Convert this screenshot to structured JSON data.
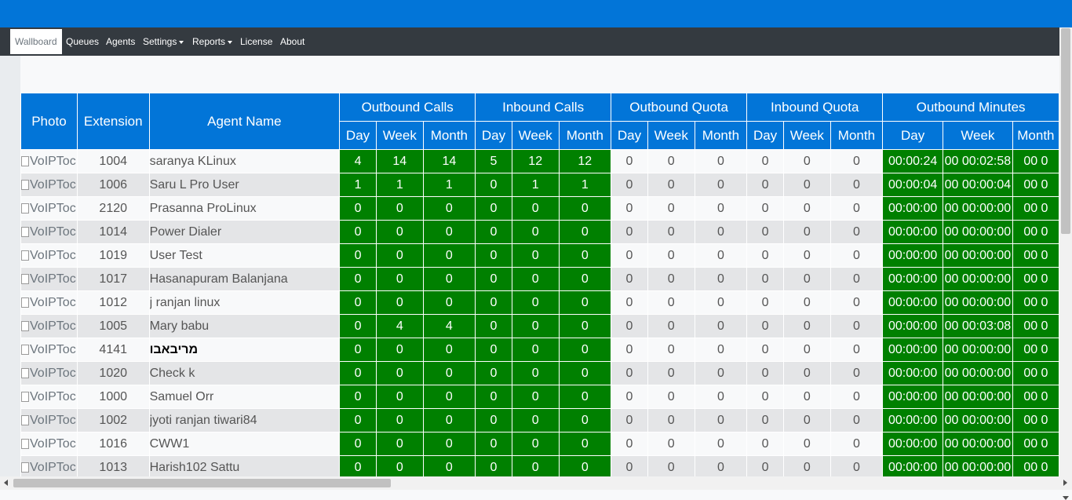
{
  "nav": {
    "items": [
      {
        "label": "Wallboard",
        "active": true,
        "dropdown": false
      },
      {
        "label": "Queues",
        "active": false,
        "dropdown": false
      },
      {
        "label": "Agents",
        "active": false,
        "dropdown": false
      },
      {
        "label": "Settings",
        "active": false,
        "dropdown": true
      },
      {
        "label": "Reports",
        "active": false,
        "dropdown": true
      },
      {
        "label": "License",
        "active": false,
        "dropdown": false
      },
      {
        "label": "About",
        "active": false,
        "dropdown": false
      }
    ]
  },
  "table": {
    "headers": {
      "photo": "Photo",
      "extension": "Extension",
      "agent_name": "Agent Name",
      "groups": [
        "Outbound Calls",
        "Inbound Calls",
        "Outbound Quota",
        "Inbound Quota",
        "Outbound Minutes"
      ],
      "sub": [
        "Day",
        "Week",
        "Month",
        "Day",
        "Week",
        "Month",
        "Day",
        "Week",
        "Month",
        "Day",
        "Week",
        "Month",
        "Day",
        "Week",
        "Month"
      ]
    },
    "photo_alt": "VoIPToc",
    "rows": [
      {
        "ext": "1004",
        "name": "saranya KLinux",
        "vals": [
          "4",
          "14",
          "14",
          "5",
          "12",
          "12",
          "0",
          "0",
          "0",
          "0",
          "0",
          "0",
          "00:00:24",
          "00 00:02:58",
          "00 0"
        ]
      },
      {
        "ext": "1006",
        "name": "Saru L Pro User",
        "vals": [
          "1",
          "1",
          "1",
          "0",
          "1",
          "1",
          "0",
          "0",
          "0",
          "0",
          "0",
          "0",
          "00:00:04",
          "00 00:00:04",
          "00 0"
        ]
      },
      {
        "ext": "2120",
        "name": "Prasanna ProLinux",
        "vals": [
          "0",
          "0",
          "0",
          "0",
          "0",
          "0",
          "0",
          "0",
          "0",
          "0",
          "0",
          "0",
          "00:00:00",
          "00 00:00:00",
          "00 0"
        ]
      },
      {
        "ext": "1014",
        "name": "Power Dialer",
        "vals": [
          "0",
          "0",
          "0",
          "0",
          "0",
          "0",
          "0",
          "0",
          "0",
          "0",
          "0",
          "0",
          "00:00:00",
          "00 00:00:00",
          "00 0"
        ]
      },
      {
        "ext": "1019",
        "name": "User Test",
        "vals": [
          "0",
          "0",
          "0",
          "0",
          "0",
          "0",
          "0",
          "0",
          "0",
          "0",
          "0",
          "0",
          "00:00:00",
          "00 00:00:00",
          "00 0"
        ]
      },
      {
        "ext": "1017",
        "name": "Hasanapuram Balanjana",
        "vals": [
          "0",
          "0",
          "0",
          "0",
          "0",
          "0",
          "0",
          "0",
          "0",
          "0",
          "0",
          "0",
          "00:00:00",
          "00 00:00:00",
          "00 0"
        ]
      },
      {
        "ext": "1012",
        "name": "j ranjan linux",
        "vals": [
          "0",
          "0",
          "0",
          "0",
          "0",
          "0",
          "0",
          "0",
          "0",
          "0",
          "0",
          "0",
          "00:00:00",
          "00 00:00:00",
          "00 0"
        ]
      },
      {
        "ext": "1005",
        "name": "Mary babu",
        "vals": [
          "0",
          "4",
          "4",
          "0",
          "0",
          "0",
          "0",
          "0",
          "0",
          "0",
          "0",
          "0",
          "00:00:00",
          "00 00:03:08",
          "00 0"
        ]
      },
      {
        "ext": "4141",
        "name": "מריבאבו",
        "vals": [
          "0",
          "0",
          "0",
          "0",
          "0",
          "0",
          "0",
          "0",
          "0",
          "0",
          "0",
          "0",
          "00:00:00",
          "00 00:00:00",
          "00 0"
        ]
      },
      {
        "ext": "1020",
        "name": "Check k",
        "vals": [
          "0",
          "0",
          "0",
          "0",
          "0",
          "0",
          "0",
          "0",
          "0",
          "0",
          "0",
          "0",
          "00:00:00",
          "00 00:00:00",
          "00 0"
        ]
      },
      {
        "ext": "1000",
        "name": "Samuel Orr",
        "vals": [
          "0",
          "0",
          "0",
          "0",
          "0",
          "0",
          "0",
          "0",
          "0",
          "0",
          "0",
          "0",
          "00:00:00",
          "00 00:00:00",
          "00 0"
        ]
      },
      {
        "ext": "1002",
        "name": "jyoti ranjan tiwari84",
        "vals": [
          "0",
          "0",
          "0",
          "0",
          "0",
          "0",
          "0",
          "0",
          "0",
          "0",
          "0",
          "0",
          "00:00:00",
          "00 00:00:00",
          "00 0"
        ]
      },
      {
        "ext": "1016",
        "name": "CWW1",
        "vals": [
          "0",
          "0",
          "0",
          "0",
          "0",
          "0",
          "0",
          "0",
          "0",
          "0",
          "0",
          "0",
          "00:00:00",
          "00 00:00:00",
          "00 0"
        ]
      },
      {
        "ext": "1013",
        "name": "Harish102 Sattu",
        "vals": [
          "0",
          "0",
          "0",
          "0",
          "0",
          "0",
          "0",
          "0",
          "0",
          "0",
          "0",
          "0",
          "00:00:00",
          "00 00:00:00",
          "00 0"
        ]
      }
    ]
  },
  "colors": {
    "topbar": "#0275d8",
    "navbar": "#343a40",
    "header": "#0275d8",
    "green": "#008000"
  }
}
